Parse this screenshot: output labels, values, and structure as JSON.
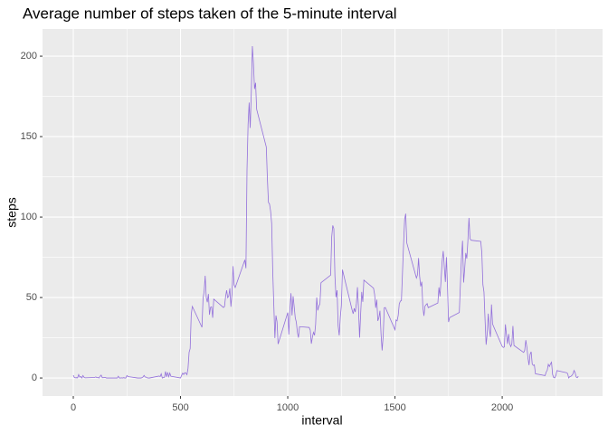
{
  "chart_data": {
    "type": "line",
    "title": "Average number of steps taken of the 5-minute interval",
    "x_label": "interval",
    "y_label": "steps",
    "x": [
      0,
      5,
      10,
      15,
      20,
      25,
      30,
      35,
      40,
      45,
      50,
      55,
      100,
      105,
      110,
      115,
      120,
      125,
      130,
      135,
      140,
      145,
      150,
      155,
      200,
      205,
      210,
      215,
      220,
      225,
      230,
      235,
      240,
      245,
      250,
      255,
      300,
      305,
      310,
      315,
      320,
      325,
      330,
      335,
      340,
      345,
      350,
      355,
      400,
      405,
      410,
      415,
      420,
      425,
      430,
      435,
      440,
      445,
      450,
      455,
      500,
      505,
      510,
      515,
      520,
      525,
      530,
      535,
      540,
      545,
      550,
      555,
      600,
      605,
      610,
      615,
      620,
      625,
      630,
      635,
      640,
      645,
      650,
      655,
      700,
      705,
      710,
      715,
      720,
      725,
      730,
      735,
      740,
      745,
      750,
      755,
      800,
      805,
      810,
      815,
      820,
      825,
      830,
      835,
      840,
      845,
      850,
      855,
      900,
      905,
      910,
      915,
      920,
      925,
      930,
      935,
      940,
      945,
      950,
      955,
      1000,
      1005,
      1010,
      1015,
      1020,
      1025,
      1030,
      1035,
      1040,
      1045,
      1050,
      1055,
      1100,
      1105,
      1110,
      1115,
      1120,
      1125,
      1130,
      1135,
      1140,
      1145,
      1150,
      1155,
      1200,
      1205,
      1210,
      1215,
      1220,
      1225,
      1230,
      1235,
      1240,
      1245,
      1250,
      1255,
      1300,
      1305,
      1310,
      1315,
      1320,
      1325,
      1330,
      1335,
      1340,
      1345,
      1350,
      1355,
      1400,
      1405,
      1410,
      1415,
      1420,
      1425,
      1430,
      1435,
      1440,
      1445,
      1450,
      1455,
      1500,
      1505,
      1510,
      1515,
      1520,
      1525,
      1530,
      1535,
      1540,
      1545,
      1550,
      1555,
      1600,
      1605,
      1610,
      1615,
      1620,
      1625,
      1630,
      1635,
      1640,
      1645,
      1650,
      1655,
      1700,
      1705,
      1710,
      1715,
      1720,
      1725,
      1730,
      1735,
      1740,
      1745,
      1750,
      1755,
      1800,
      1805,
      1810,
      1815,
      1820,
      1825,
      1830,
      1835,
      1840,
      1845,
      1850,
      1855,
      1900,
      1905,
      1910,
      1915,
      1920,
      1925,
      1930,
      1935,
      1940,
      1945,
      1950,
      1955,
      2000,
      2005,
      2010,
      2015,
      2020,
      2025,
      2030,
      2035,
      2040,
      2045,
      2050,
      2055,
      2100,
      2105,
      2110,
      2115,
      2120,
      2125,
      2130,
      2135,
      2140,
      2145,
      2150,
      2155,
      2200,
      2205,
      2210,
      2215,
      2220,
      2225,
      2230,
      2235,
      2240,
      2245,
      2250,
      2255,
      2300,
      2305,
      2310,
      2315,
      2320,
      2325,
      2330,
      2335,
      2340,
      2345,
      2350,
      2355
    ],
    "series": [
      {
        "color": "#9370db",
        "values": [
          1.7,
          0.3,
          0.1,
          0.2,
          0.1,
          2.1,
          0.5,
          0.9,
          0,
          1.5,
          0.4,
          0.1,
          0.3,
          0.7,
          0.2,
          0.3,
          0,
          1.1,
          1.8,
          0.2,
          0.2,
          0.4,
          0.3,
          0,
          0,
          0,
          1.1,
          0,
          0,
          0.1,
          0,
          0.2,
          0,
          0,
          1.5,
          0.9,
          0,
          0,
          0,
          0,
          0.2,
          0.6,
          1.6,
          0.6,
          0.5,
          0.1,
          0,
          0,
          1.2,
          0.9,
          2.6,
          0,
          0.3,
          0.4,
          4.1,
          0.7,
          3.5,
          0.8,
          3.1,
          1.1,
          0,
          1.6,
          3.0,
          2.2,
          3.3,
          3.0,
          2.1,
          6.1,
          16.0,
          18.3,
          39.5,
          44.5,
          31.5,
          49.3,
          53.8,
          63.5,
          50.0,
          47.1,
          52.2,
          39.3,
          44.0,
          44.2,
          37.4,
          49.0,
          43.8,
          44.4,
          50.5,
          54.5,
          49.9,
          50.9,
          55.7,
          44.3,
          52.3,
          69.5,
          57.8,
          56.2,
          73.4,
          68.2,
          129.4,
          157.5,
          171.2,
          155.4,
          177.3,
          206.2,
          195.9,
          179.6,
          183.4,
          167.0,
          143.5,
          124.0,
          109.1,
          108.1,
          103.7,
          96.0,
          66.2,
          45.2,
          24.8,
          38.8,
          35.0,
          21.1,
          40.6,
          27.0,
          42.4,
          52.7,
          38.9,
          50.8,
          44.3,
          37.4,
          34.7,
          28.3,
          25.1,
          31.9,
          31.4,
          29.7,
          21.3,
          25.5,
          28.4,
          26.5,
          33.4,
          50.0,
          42.0,
          44.6,
          46.0,
          59.2,
          63.9,
          87.7,
          94.8,
          92.8,
          63.4,
          50.2,
          54.5,
          32.4,
          26.5,
          37.7,
          45.1,
          67.3,
          42.3,
          39.9,
          43.3,
          41.0,
          46.2,
          56.4,
          42.8,
          25.1,
          40.0,
          53.5,
          47.3,
          60.8,
          55.8,
          52.0,
          43.6,
          48.7,
          35.5,
          37.5,
          41.8,
          27.5,
          17.1,
          26.1,
          43.6,
          43.8,
          30.0,
          36.1,
          35.5,
          38.8,
          46.0,
          47.8,
          48.1,
          65.3,
          82.9,
          98.7,
          102.1,
          84.0,
          62.1,
          64.1,
          74.5,
          63.2,
          56.9,
          59.8,
          43.9,
          38.6,
          44.7,
          45.5,
          46.2,
          43.7,
          46.6,
          56.3,
          50.7,
          61.2,
          72.7,
          78.9,
          68.9,
          59.7,
          75.1,
          56.5,
          34.8,
          37.5,
          40.7,
          58.0,
          74.7,
          85.3,
          59.3,
          67.8,
          77.7,
          74.2,
          85.3,
          99.5,
          86.6,
          85.6,
          84.9,
          77.8,
          58.0,
          53.4,
          36.3,
          20.7,
          27.4,
          40.0,
          30.2,
          25.5,
          45.7,
          33.5,
          19.6,
          19.0,
          19.3,
          33.3,
          26.8,
          21.2,
          27.3,
          21.3,
          19.5,
          21.3,
          32.3,
          20.2,
          15.9,
          17.2,
          23.5,
          19.2,
          12.5,
          8.0,
          14.7,
          16.3,
          8.7,
          7.8,
          8.1,
          2.6,
          1.5,
          3.7,
          4.8,
          8.5,
          7.1,
          8.7,
          9.8,
          2.2,
          0.3,
          0.1,
          1.6,
          4.6,
          3.3,
          2.8,
          0,
          0.8,
          1.0,
          1.6,
          2.6,
          4.7,
          3.3,
          0.6,
          0.2,
          1.1
        ]
      }
    ],
    "xlim": [
      -143.5,
      2468
    ],
    "ylim": [
      -11.2,
      216.9
    ],
    "xticks": [
      0,
      500,
      1000,
      1500,
      2000
    ],
    "yticks": [
      0,
      50,
      100,
      150,
      200
    ],
    "x_minor_gridlines": [
      250,
      750,
      1250,
      1750,
      2250
    ],
    "y_minor_gridlines": [
      25,
      75,
      125,
      175
    ],
    "grid": true
  }
}
